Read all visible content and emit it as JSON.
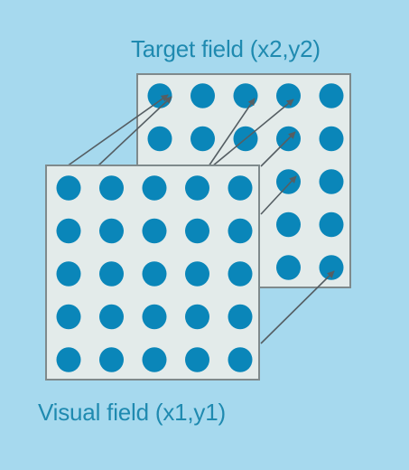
{
  "labels": {
    "target_field": "Target field (x2,y2)",
    "visual_field": "Visual field (x1,y1)"
  },
  "grid": {
    "rows": 5,
    "cols": 5
  },
  "colors": {
    "background": "#a6d9ee",
    "panel_fill": "#e3ebea",
    "panel_border": "#7f8a8c",
    "dot": "#0a86b9",
    "arrow": "#555e63",
    "label": "#1f8ab0"
  }
}
